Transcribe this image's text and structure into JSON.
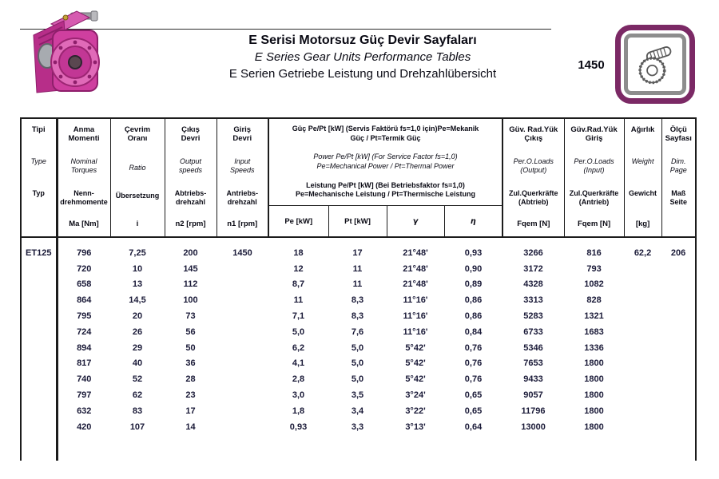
{
  "header": {
    "title_tr": "E Serisi Motorsuz Güç Devir Sayfaları",
    "title_en": "E Series Gear Units Performance Tables",
    "title_de": "E Serien Getriebe Leistung und Drehzahlübersicht",
    "code": "1450"
  },
  "icons": {
    "left": "pink-worm-gearbox-photo",
    "right": "worm-gear-line-drawing"
  },
  "colors": {
    "gearbox_pink": "#cf3f9f",
    "frame_purple": "#7b2965",
    "frame_gray": "#8d8d8d",
    "border_black": "#1c1c1c"
  },
  "table": {
    "columns": [
      {
        "tr": "Tipi",
        "en": "Type",
        "de": "Typ",
        "unit": ""
      },
      {
        "tr": "Anma\nMomenti",
        "en": "Nominal\nTorques",
        "de": "Nenn-\ndrehmomente",
        "unit": "Ma [Nm]"
      },
      {
        "tr": "Çevrim\nOranı",
        "en": "Ratio",
        "de": "Übersetzung",
        "unit": "i"
      },
      {
        "tr": "Çıkış\nDevri",
        "en": "Output\nspeeds",
        "de": "Abtriebs-\ndrehzahl",
        "unit": "n2 [rpm]"
      },
      {
        "tr": "Giriş\nDevri",
        "en": "Input\nSpeeds",
        "de": "Antriebs-\ndrehzahl",
        "unit": "n1 [rpm]"
      },
      {
        "tr": "Güv. Rad.Yük\nÇıkış",
        "en": "Per.O.Loads\n(Output)",
        "de": "Zul.Querkräfte\n(Abtrieb)",
        "unit": "Fqem [N]"
      },
      {
        "tr": "Güv.Rad.Yük\nGiriş",
        "en": "Per.O.Loads\n(Input)",
        "de": "Zul.Querkräfte\n(Antrieb)",
        "unit": "Fqem [N]"
      },
      {
        "tr": "Ağırlık",
        "en": "Weight",
        "de": "Gewicht",
        "unit": "[kg]"
      },
      {
        "tr": "Ölçü\nSayfası",
        "en": "Dim.\nPage",
        "de": "Maß\nSeite",
        "unit": ""
      }
    ],
    "power_group": {
      "tr": "Güç Pe/Pt [kW] (Servis Faktörü fs=1,0 için)Pe=Mekanik\nGüç / Pt=Termik Güç",
      "en": "Power Pe/Pt [kW] (For Service Factor fs=1,0)\nPe=Mechanical Power / Pt=Thermal Power",
      "de": "Leistung Pe/Pt [kW] (Bei Betriebsfaktor fs=1,0)\nPe=Mechanische Leistung / Pt=Thermische Leistung",
      "subcolumns": [
        "Pe [kW]",
        "Pt [kW]",
        "γ",
        "η"
      ]
    },
    "rows": [
      [
        "ET125",
        "796",
        "7,25",
        "200",
        "1450",
        "18",
        "17",
        "21°48'",
        "0,93",
        "3266",
        "816",
        "62,2",
        "206"
      ],
      [
        "",
        "720",
        "10",
        "145",
        "",
        "12",
        "11",
        "21°48'",
        "0,90",
        "3172",
        "793",
        "",
        ""
      ],
      [
        "",
        "658",
        "13",
        "112",
        "",
        "8,7",
        "11",
        "21°48'",
        "0,89",
        "4328",
        "1082",
        "",
        ""
      ],
      [
        "",
        "864",
        "14,5",
        "100",
        "",
        "11",
        "8,3",
        "11°16'",
        "0,86",
        "3313",
        "828",
        "",
        ""
      ],
      [
        "",
        "795",
        "20",
        "73",
        "",
        "7,1",
        "8,3",
        "11°16'",
        "0,86",
        "5283",
        "1321",
        "",
        ""
      ],
      [
        "",
        "724",
        "26",
        "56",
        "",
        "5,0",
        "7,6",
        "11°16'",
        "0,84",
        "6733",
        "1683",
        "",
        ""
      ],
      [
        "",
        "894",
        "29",
        "50",
        "",
        "6,2",
        "5,0",
        "5°42'",
        "0,76",
        "5346",
        "1336",
        "",
        ""
      ],
      [
        "",
        "817",
        "40",
        "36",
        "",
        "4,1",
        "5,0",
        "5°42'",
        "0,76",
        "7653",
        "1800",
        "",
        ""
      ],
      [
        "",
        "740",
        "52",
        "28",
        "",
        "2,8",
        "5,0",
        "5°42'",
        "0,76",
        "9433",
        "1800",
        "",
        ""
      ],
      [
        "",
        "797",
        "62",
        "23",
        "",
        "3,0",
        "3,5",
        "3°24'",
        "0,65",
        "9057",
        "1800",
        "",
        ""
      ],
      [
        "",
        "632",
        "83",
        "17",
        "",
        "1,8",
        "3,4",
        "3°22'",
        "0,65",
        "11796",
        "1800",
        "",
        ""
      ],
      [
        "",
        "420",
        "107",
        "14",
        "",
        "0,93",
        "3,3",
        "3°13'",
        "0,64",
        "13000",
        "1800",
        "",
        ""
      ]
    ]
  }
}
